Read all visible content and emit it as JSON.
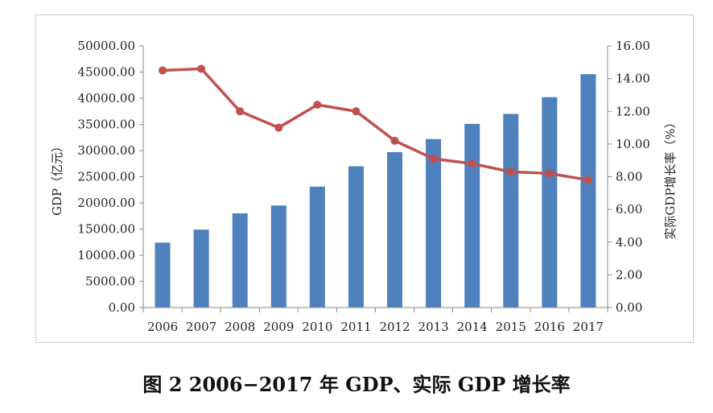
{
  "caption": "图 2  2006−2017 年 GDP、实际 GDP 增长率",
  "chart_data": {
    "type": "bar+line",
    "categories": [
      "2006",
      "2007",
      "2008",
      "2009",
      "2010",
      "2011",
      "2012",
      "2013",
      "2014",
      "2015",
      "2016",
      "2017"
    ],
    "series": [
      {
        "name": "GDP",
        "type": "bar",
        "axis": "left",
        "color": "#4f81bd",
        "values": [
          12400,
          14900,
          18000,
          19500,
          23100,
          27000,
          29700,
          32200,
          35100,
          37000,
          40200,
          44600
        ]
      },
      {
        "name": "实际GDP增长率",
        "type": "line",
        "axis": "right",
        "color": "#c0504d",
        "values": [
          14.5,
          14.6,
          12.0,
          11.0,
          12.4,
          12.0,
          10.2,
          9.1,
          8.8,
          8.3,
          8.2,
          7.8
        ]
      }
    ],
    "y_left": {
      "label": "GDP（亿元）",
      "range": [
        0,
        50000
      ],
      "ticks": [
        "0.00",
        "5000.00",
        "10000.00",
        "15000.00",
        "20000.00",
        "25000.00",
        "30000.00",
        "35000.00",
        "40000.00",
        "45000.00",
        "50000.00"
      ]
    },
    "y_right": {
      "label": "实际GDP增长率（%）",
      "range": [
        0,
        16
      ],
      "ticks": [
        "0.00",
        "2.00",
        "4.00",
        "6.00",
        "8.00",
        "10.00",
        "12.00",
        "14.00",
        "16.00"
      ]
    },
    "grid": false,
    "legend": "none"
  }
}
